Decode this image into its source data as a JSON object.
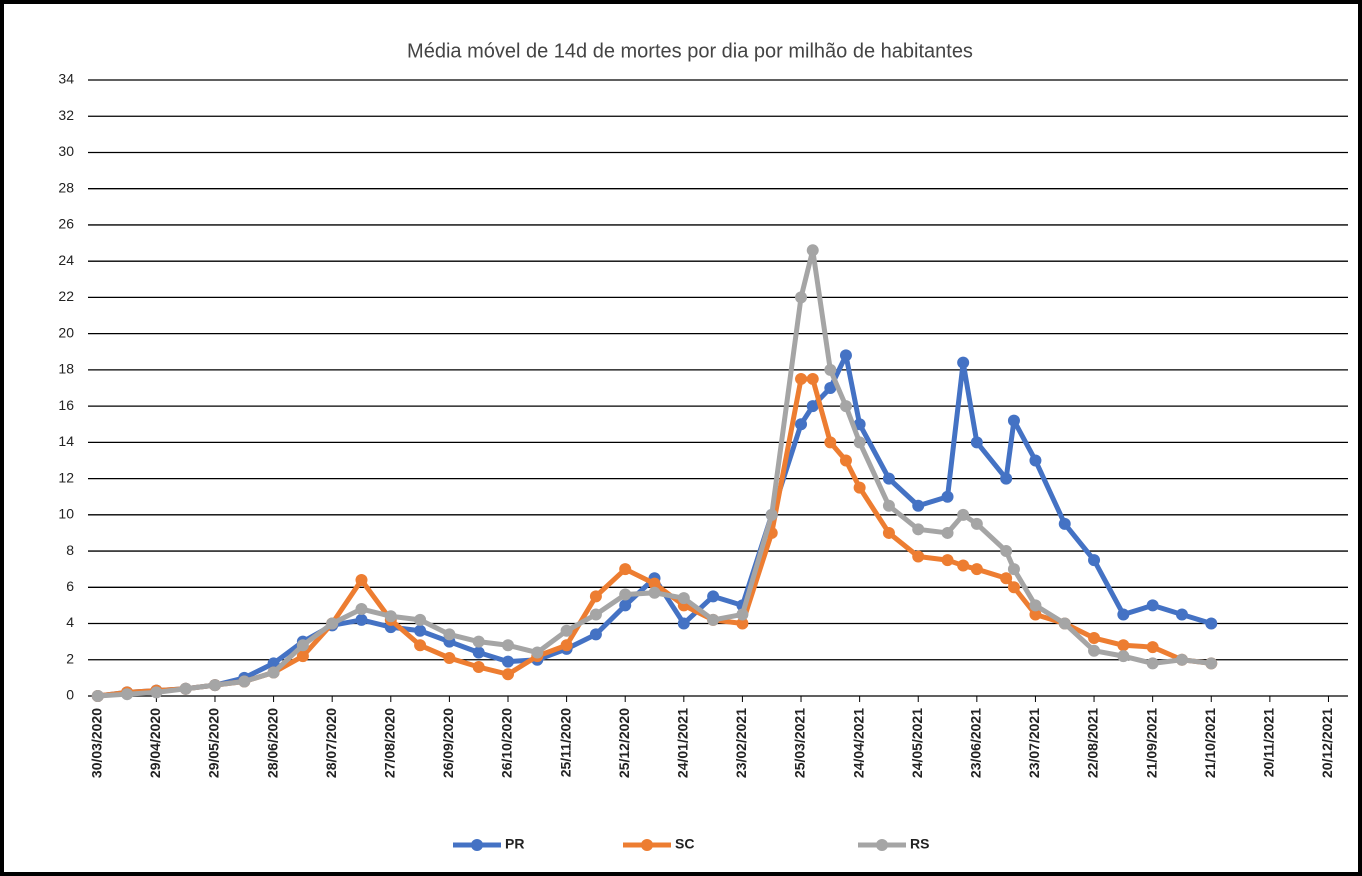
{
  "chart_data": {
    "type": "line",
    "title": "Média móvel de 14d de mortes por dia por milhão de habitantes",
    "x": [
      "30/03/2020",
      "14/04/2020",
      "29/04/2020",
      "14/05/2020",
      "29/05/2020",
      "13/06/2020",
      "28/06/2020",
      "13/07/2020",
      "28/07/2020",
      "12/08/2020",
      "27/08/2020",
      "11/09/2020",
      "26/09/2020",
      "11/10/2020",
      "26/10/2020",
      "10/11/2020",
      "25/11/2020",
      "10/12/2020",
      "25/12/2020",
      "09/01/2021",
      "24/01/2021",
      "08/02/2021",
      "23/02/2021",
      "10/03/2021",
      "25/03/2021",
      "31/03/2021",
      "09/04/2021",
      "17/04/2021",
      "24/04/2021",
      "09/05/2021",
      "24/05/2021",
      "08/06/2021",
      "16/06/2021",
      "23/06/2021",
      "08/07/2021",
      "12/07/2021",
      "23/07/2021",
      "07/08/2021",
      "22/08/2021",
      "06/09/2021",
      "21/09/2021",
      "06/10/2021",
      "21/10/2021"
    ],
    "series": [
      {
        "name": "PR",
        "color": "#4472c4",
        "values": [
          0,
          0.2,
          0.3,
          0.4,
          0.6,
          1.0,
          1.8,
          3.0,
          3.9,
          4.2,
          3.8,
          3.6,
          3.0,
          2.4,
          1.9,
          2.0,
          2.6,
          3.4,
          5.0,
          6.5,
          4.0,
          5.5,
          5.0,
          10,
          15,
          16,
          17,
          18.8,
          15,
          12,
          10.5,
          11,
          18.4,
          14,
          12,
          15.2,
          13,
          9.5,
          7.5,
          4.5,
          5,
          4.5,
          4
        ]
      },
      {
        "name": "SC",
        "color": "#ed7d31",
        "values": [
          0,
          0.2,
          0.3,
          0.4,
          0.6,
          0.8,
          1.3,
          2.2,
          4.0,
          6.4,
          4.2,
          2.8,
          2.1,
          1.6,
          1.2,
          2.2,
          2.8,
          5.5,
          7.0,
          6.2,
          5.0,
          4.2,
          4.0,
          9,
          17.5,
          17.5,
          14,
          13,
          11.5,
          9,
          7.7,
          7.5,
          7.2,
          7,
          6.5,
          6,
          4.5,
          4,
          3.2,
          2.8,
          2.7,
          2,
          1.8
        ]
      },
      {
        "name": "RS",
        "color": "#a5a5a5",
        "values": [
          0,
          0.1,
          0.2,
          0.4,
          0.6,
          0.8,
          1.3,
          2.8,
          4.0,
          4.8,
          4.4,
          4.2,
          3.4,
          3.0,
          2.8,
          2.4,
          3.6,
          4.5,
          5.6,
          5.7,
          5.4,
          4.2,
          4.5,
          10,
          22,
          24.6,
          18,
          16,
          14,
          10.5,
          9.2,
          9,
          10,
          9.5,
          8,
          7,
          5,
          4,
          2.5,
          2.2,
          1.8,
          2,
          1.8
        ]
      }
    ],
    "xlim": [
      "25/03/2020",
      "30/12/2021"
    ],
    "xticks": [
      "30/03/2020",
      "29/04/2020",
      "29/05/2020",
      "28/06/2020",
      "28/07/2020",
      "27/08/2020",
      "26/09/2020",
      "26/10/2020",
      "25/11/2020",
      "25/12/2020",
      "24/01/2021",
      "23/02/2021",
      "25/03/2021",
      "24/04/2021",
      "24/05/2021",
      "23/06/2021",
      "23/07/2021",
      "22/08/2021",
      "21/09/2021",
      "21/10/2021",
      "20/11/2021",
      "20/12/2021"
    ],
    "ylim": [
      0,
      34
    ],
    "yticks": [
      0,
      2,
      4,
      6,
      8,
      10,
      12,
      14,
      16,
      18,
      20,
      22,
      24,
      26,
      28,
      30,
      32,
      34
    ],
    "grid": true,
    "legend": "bottom"
  }
}
